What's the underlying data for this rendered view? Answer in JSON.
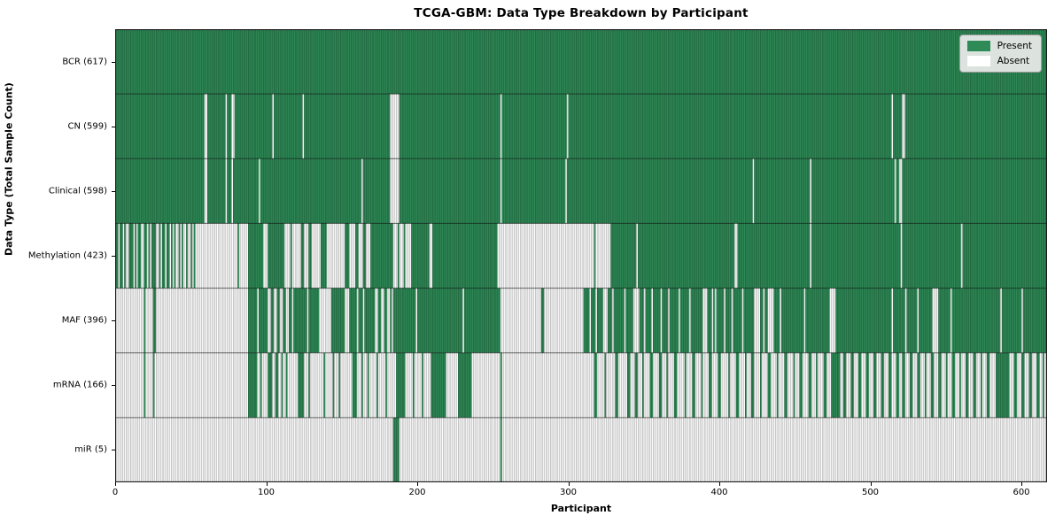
{
  "title": "TCGA-GBM: Data Type Breakdown by Participant",
  "chart_data": {
    "type": "heatmap",
    "title": "TCGA-GBM: Data Type Breakdown by Participant",
    "xlabel": "Participant",
    "ylabel": "Data Type (Total Sample Count)",
    "x_ticks": [
      0,
      100,
      200,
      300,
      400,
      500,
      600
    ],
    "x_range": [
      0,
      617
    ],
    "n_participants": 617,
    "grid": false,
    "legend": {
      "position": "upper right",
      "entries": [
        {
          "label": "Present",
          "color": "#2e8b57"
        },
        {
          "label": "Absent",
          "color": "#ffffff"
        }
      ]
    },
    "colors": {
      "present": "#2e8b57",
      "absent": "#ffffff",
      "bar_edge": "rgba(0,0,0,0.38)",
      "row_divider": "rgba(0,0,0,0.55)",
      "spine": "#1a1a1a"
    },
    "rows": [
      {
        "label": "BCR (617)",
        "name": "BCR",
        "present_count": 617,
        "base": "present",
        "runs_are": "absent",
        "runs": []
      },
      {
        "label": "CN (599)",
        "name": "CN",
        "present_count": 599,
        "base": "present",
        "runs_are": "absent",
        "runs": [
          [
            59,
            61
          ],
          [
            73,
            74
          ],
          [
            77,
            79
          ],
          [
            104,
            105
          ],
          [
            124,
            125
          ],
          [
            182,
            188
          ],
          [
            255,
            256
          ],
          [
            299,
            300
          ],
          [
            514,
            515
          ],
          [
            521,
            523
          ]
        ]
      },
      {
        "label": "Clinical (598)",
        "name": "Clinical",
        "present_count": 598,
        "base": "present",
        "runs_are": "absent",
        "runs": [
          [
            59,
            61
          ],
          [
            73,
            74
          ],
          [
            77,
            78
          ],
          [
            95,
            96
          ],
          [
            163,
            164
          ],
          [
            182,
            188
          ],
          [
            255,
            256
          ],
          [
            298,
            299
          ],
          [
            422,
            423
          ],
          [
            460,
            461
          ],
          [
            516,
            517
          ],
          [
            519,
            521
          ]
        ]
      },
      {
        "label": "Methylation (423)",
        "name": "Methylation",
        "present_count": 423,
        "base": "present",
        "runs_are": "absent",
        "runs": [
          [
            2,
            3
          ],
          [
            5,
            6
          ],
          [
            7,
            9
          ],
          [
            12,
            13
          ],
          [
            14,
            15
          ],
          [
            17,
            19
          ],
          [
            21,
            22
          ],
          [
            23,
            24
          ],
          [
            27,
            29
          ],
          [
            30,
            31
          ],
          [
            33,
            34
          ],
          [
            36,
            37
          ],
          [
            38,
            39
          ],
          [
            40,
            42
          ],
          [
            43,
            44
          ],
          [
            45,
            47
          ],
          [
            48,
            50
          ],
          [
            51,
            52
          ],
          [
            53,
            81
          ],
          [
            82,
            88
          ],
          [
            98,
            101
          ],
          [
            112,
            116
          ],
          [
            117,
            123
          ],
          [
            125,
            128
          ],
          [
            130,
            136
          ],
          [
            140,
            148
          ],
          [
            148,
            152
          ],
          [
            155,
            159
          ],
          [
            161,
            164
          ],
          [
            166,
            169
          ],
          [
            184,
            187
          ],
          [
            188,
            191
          ],
          [
            192,
            196
          ],
          [
            208,
            210
          ],
          [
            253,
            317
          ],
          [
            318,
            328
          ],
          [
            345,
            346
          ],
          [
            410,
            412
          ],
          [
            460,
            461
          ],
          [
            520,
            521
          ],
          [
            560,
            561
          ]
        ]
      },
      {
        "label": "MAF (396)",
        "name": "MAF",
        "present_count": 396,
        "base": "present",
        "runs_are": "absent",
        "runs": [
          [
            0,
            19
          ],
          [
            20,
            25
          ],
          [
            27,
            88
          ],
          [
            94,
            95
          ],
          [
            101,
            103
          ],
          [
            105,
            107
          ],
          [
            109,
            111
          ],
          [
            113,
            115
          ],
          [
            117,
            118
          ],
          [
            127,
            128
          ],
          [
            135,
            143
          ],
          [
            152,
            155
          ],
          [
            160,
            161
          ],
          [
            164,
            165
          ],
          [
            172,
            174
          ],
          [
            176,
            178
          ],
          [
            180,
            182
          ],
          [
            183,
            184
          ],
          [
            199,
            200
          ],
          [
            230,
            231
          ],
          [
            255,
            282
          ],
          [
            284,
            310
          ],
          [
            314,
            315
          ],
          [
            318,
            319
          ],
          [
            323,
            326
          ],
          [
            329,
            330
          ],
          [
            337,
            338
          ],
          [
            343,
            347
          ],
          [
            350,
            351
          ],
          [
            355,
            356
          ],
          [
            361,
            362
          ],
          [
            366,
            367
          ],
          [
            373,
            374
          ],
          [
            380,
            381
          ],
          [
            389,
            392
          ],
          [
            395,
            396
          ],
          [
            397,
            398
          ],
          [
            403,
            404
          ],
          [
            408,
            409
          ],
          [
            415,
            416
          ],
          [
            423,
            427
          ],
          [
            429,
            430
          ],
          [
            432,
            436
          ],
          [
            440,
            441
          ],
          [
            456,
            457
          ],
          [
            473,
            477
          ],
          [
            514,
            515
          ],
          [
            523,
            524
          ],
          [
            531,
            532
          ],
          [
            541,
            545
          ],
          [
            553,
            554
          ],
          [
            586,
            587
          ],
          [
            600,
            601
          ]
        ]
      },
      {
        "label": "mRNA (166)",
        "name": "mRNA",
        "present_count": 166,
        "base": "absent",
        "runs_are": "present",
        "runs": [
          [
            19,
            20
          ],
          [
            25,
            26
          ],
          [
            88,
            94
          ],
          [
            96,
            97
          ],
          [
            101,
            104
          ],
          [
            106,
            108
          ],
          [
            110,
            111
          ],
          [
            113,
            114
          ],
          [
            121,
            125
          ],
          [
            128,
            129
          ],
          [
            138,
            139
          ],
          [
            144,
            145
          ],
          [
            148,
            149
          ],
          [
            157,
            160
          ],
          [
            163,
            164
          ],
          [
            167,
            168
          ],
          [
            173,
            174
          ],
          [
            179,
            180
          ],
          [
            186,
            192
          ],
          [
            197,
            198
          ],
          [
            203,
            204
          ],
          [
            209,
            219
          ],
          [
            227,
            236
          ],
          [
            255,
            256
          ],
          [
            317,
            319
          ],
          [
            324,
            325
          ],
          [
            331,
            333
          ],
          [
            339,
            341
          ],
          [
            344,
            346
          ],
          [
            349,
            350
          ],
          [
            354,
            356
          ],
          [
            360,
            362
          ],
          [
            365,
            366
          ],
          [
            370,
            372
          ],
          [
            377,
            378
          ],
          [
            382,
            384
          ],
          [
            388,
            389
          ],
          [
            393,
            395
          ],
          [
            399,
            401
          ],
          [
            406,
            407
          ],
          [
            411,
            413
          ],
          [
            417,
            418
          ],
          [
            421,
            423
          ],
          [
            427,
            428
          ],
          [
            432,
            434
          ],
          [
            438,
            439
          ],
          [
            443,
            445
          ],
          [
            449,
            450
          ],
          [
            453,
            455
          ],
          [
            459,
            461
          ],
          [
            464,
            465
          ],
          [
            469,
            471
          ],
          [
            474,
            480
          ],
          [
            482,
            484
          ],
          [
            487,
            489
          ],
          [
            492,
            494
          ],
          [
            497,
            499
          ],
          [
            502,
            504
          ],
          [
            507,
            509
          ],
          [
            512,
            514
          ],
          [
            517,
            519
          ],
          [
            521,
            523
          ],
          [
            526,
            528
          ],
          [
            531,
            533
          ],
          [
            536,
            537
          ],
          [
            540,
            542
          ],
          [
            545,
            547
          ],
          [
            550,
            551
          ],
          [
            554,
            556
          ],
          [
            559,
            560
          ],
          [
            563,
            565
          ],
          [
            568,
            570
          ],
          [
            573,
            574
          ],
          [
            577,
            579
          ],
          [
            583,
            592
          ],
          [
            595,
            597
          ],
          [
            600,
            602
          ],
          [
            605,
            607
          ],
          [
            610,
            612
          ],
          [
            614,
            615
          ]
        ]
      },
      {
        "label": "miR (5)",
        "name": "miR",
        "present_count": 5,
        "base": "absent",
        "runs_are": "present",
        "runs": [
          [
            184,
            188
          ],
          [
            255,
            256
          ]
        ]
      }
    ]
  }
}
